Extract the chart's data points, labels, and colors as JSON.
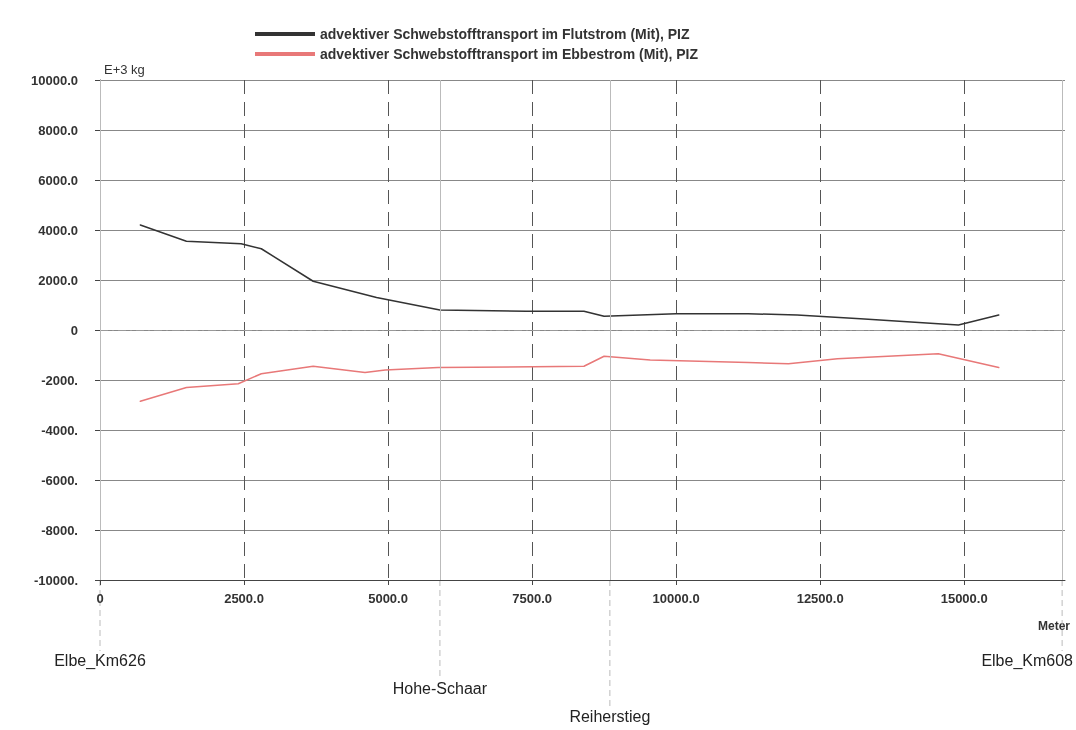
{
  "chart_data": {
    "type": "line",
    "ylabel": "E+3 kg",
    "xlabel": "Meter",
    "xlim": [
      0,
      16750
    ],
    "xticks": [
      0,
      {
        "value": 2500,
        "label": "2500.0"
      },
      {
        "value": 5000,
        "label": "5000.0"
      },
      {
        "value": 7500,
        "label": "7500.0"
      },
      {
        "value": 10000,
        "label": "10000.0"
      },
      {
        "value": 12500,
        "label": "12500.0"
      },
      {
        "value": 15000,
        "label": "15000.0"
      }
    ],
    "ylim": [
      -10000,
      10000
    ],
    "yticks": [
      {
        "value": -10000,
        "label": "-10000."
      },
      {
        "value": -8000,
        "label": "-8000."
      },
      {
        "value": -6000,
        "label": "-6000."
      },
      {
        "value": -4000,
        "label": "-4000."
      },
      {
        "value": -2000,
        "label": "-2000."
      },
      0,
      {
        "value": 2000,
        "label": "2000.0"
      },
      {
        "value": 4000,
        "label": "4000.0"
      },
      {
        "value": 6000,
        "label": "6000.0"
      },
      {
        "value": 8000,
        "label": "8000.0"
      },
      {
        "value": 10000,
        "label": "10000.0"
      }
    ],
    "grid": true,
    "legend": "top",
    "marker": "none",
    "line_style": "solid",
    "series": [
      {
        "name": "advektiver Schwebstofftransport im Flutstrom (Mit), PIZ",
        "color": "#333333",
        "x": [
          700,
          1500,
          2450,
          2800,
          3700,
          4800,
          5900,
          7400,
          8400,
          8750,
          10000,
          11250,
          12100,
          13200,
          14550,
          14900,
          15600
        ],
        "values": [
          4200,
          3550,
          3450,
          3250,
          1950,
          1300,
          800,
          750,
          750,
          550,
          650,
          650,
          600,
          450,
          250,
          200,
          600
        ]
      },
      {
        "name": "advektiver Schwebstofftransport im Ebbestrom (Mit), PIZ",
        "color": "#e87878",
        "x": [
          700,
          1500,
          2400,
          2800,
          3700,
          4600,
          4950,
          5870,
          8400,
          8750,
          9550,
          11250,
          11950,
          12800,
          14550,
          15600
        ],
        "values": [
          -2850,
          -2300,
          -2150,
          -1750,
          -1450,
          -1700,
          -1600,
          -1500,
          -1450,
          -1050,
          -1200,
          -1300,
          -1350,
          -1150,
          -950,
          -1500
        ]
      }
    ],
    "ref_lines": [
      {
        "axis": "y",
        "value": 0,
        "color": "#999999",
        "line_style": "dashed"
      },
      {
        "axis": "x",
        "value": 0,
        "label": "Elbe_Km626",
        "color": "#bbbbbb"
      },
      {
        "axis": "x",
        "value": 5900,
        "label": "Hohe-Schaar",
        "color": "#bbbbbb"
      },
      {
        "axis": "x",
        "value": 8850,
        "label": "Reiherstieg",
        "color": "#bbbbbb"
      },
      {
        "axis": "x",
        "value": 16700,
        "label": "Elbe_Km608",
        "color": "#bbbbbb"
      }
    ]
  }
}
